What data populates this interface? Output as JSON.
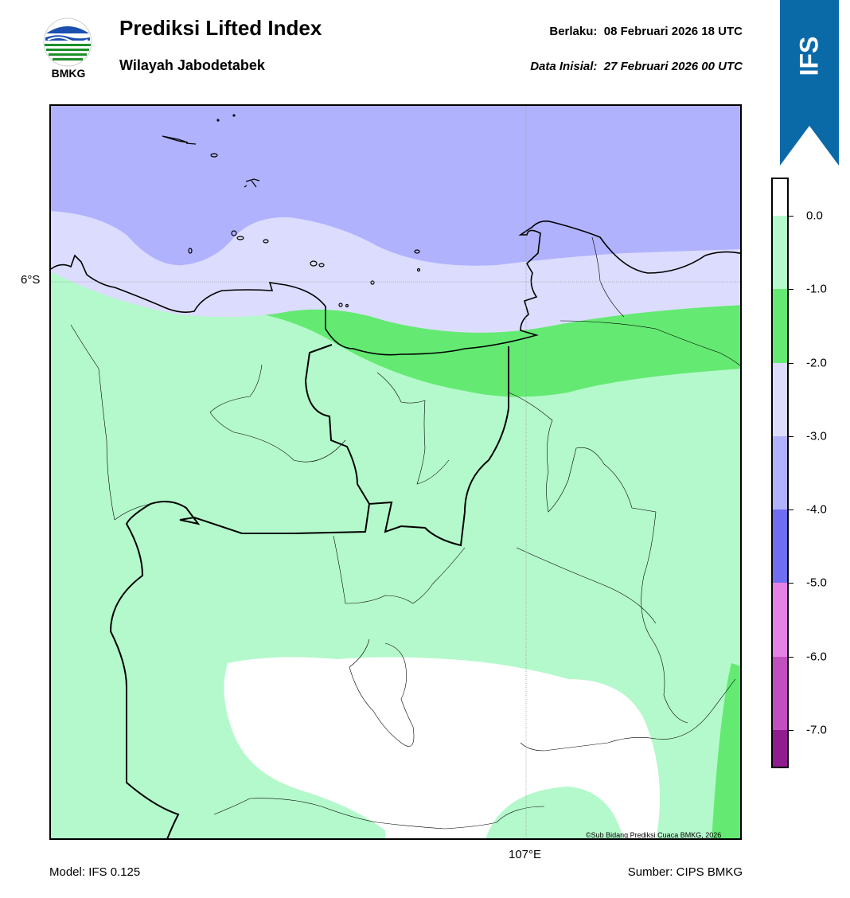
{
  "header": {
    "logo_text": "BMKG",
    "title": "Prediksi Lifted Index",
    "subtitle": "Wilayah Jabodetabek",
    "valid_label": "Berlaku:",
    "valid_time": "08 Februari 2026 18 UTC",
    "init_label": "Data Inisial:",
    "init_time": "27 Februari 2026 00 UTC"
  },
  "ribbon": {
    "label": "IFS",
    "color": "#0a6aa8"
  },
  "map": {
    "lat_label": "6°S",
    "lon_label": "107°E",
    "copyright": "©Sub Bidang Prediksi Cuaca BMKG, 2026",
    "region_colors": {
      "sea_deep": "#b1b2fe",
      "sea_light": "#dcdcfe",
      "band_green": "#64ea72",
      "land_light_green": "#b4f9cb",
      "white": "#ffffff"
    }
  },
  "footer": {
    "model": "Model: IFS 0.125",
    "source": "Sumber: CIPS BMKG"
  },
  "colorbar": {
    "ticks": [
      "0.0",
      "-1.0",
      "-2.0",
      "-3.0",
      "-4.0",
      "-5.0",
      "-6.0",
      "-7.0"
    ],
    "segments": [
      {
        "from": 0.5,
        "to": 0.0,
        "color": "#ffffff"
      },
      {
        "from": 0.0,
        "to": -1.0,
        "color": "#b4f9cb"
      },
      {
        "from": -1.0,
        "to": -2.0,
        "color": "#64ea72"
      },
      {
        "from": -2.0,
        "to": -3.0,
        "color": "#dcdcfe"
      },
      {
        "from": -3.0,
        "to": -4.0,
        "color": "#b1b2fe"
      },
      {
        "from": -4.0,
        "to": -5.0,
        "color": "#6f6ef3"
      },
      {
        "from": -5.0,
        "to": -6.0,
        "color": "#e681e6"
      },
      {
        "from": -6.0,
        "to": -7.0,
        "color": "#c24fbf"
      },
      {
        "from": -7.0,
        "to": -7.5,
        "color": "#8f1d90"
      }
    ]
  }
}
